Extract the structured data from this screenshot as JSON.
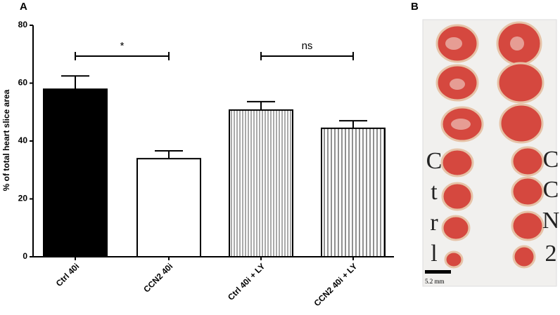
{
  "chart_data": {
    "type": "bar",
    "panel_label": "A",
    "y_label": "% of total heart slice area",
    "categories": [
      "Ctrl 40i",
      "CCN2 40i",
      "Ctrl 40i + LY",
      "CCN2 40i + LY"
    ],
    "values": [
      57.9,
      33.9,
      50.7,
      44.4
    ],
    "errors": [
      4.6,
      2.7,
      2.9,
      2.6
    ],
    "colors": [
      "#000000",
      "#ffffff",
      "#a8a8a8",
      "#ffffff"
    ],
    "hatch": [
      false,
      false,
      true,
      true
    ],
    "ylim": [
      0,
      80
    ],
    "yticks": [
      0,
      20,
      40,
      60,
      80
    ],
    "grid": false,
    "annotations": [
      {
        "text": "*",
        "from": 0,
        "to": 1
      },
      {
        "text": "ns",
        "from": 2,
        "to": 3
      }
    ]
  },
  "photo": {
    "panel_label": "B",
    "left_label": [
      "C",
      "t",
      "r",
      "l"
    ],
    "right_label": [
      "C",
      "C",
      "N",
      "2"
    ],
    "scale_bar": "5.2 mm"
  }
}
